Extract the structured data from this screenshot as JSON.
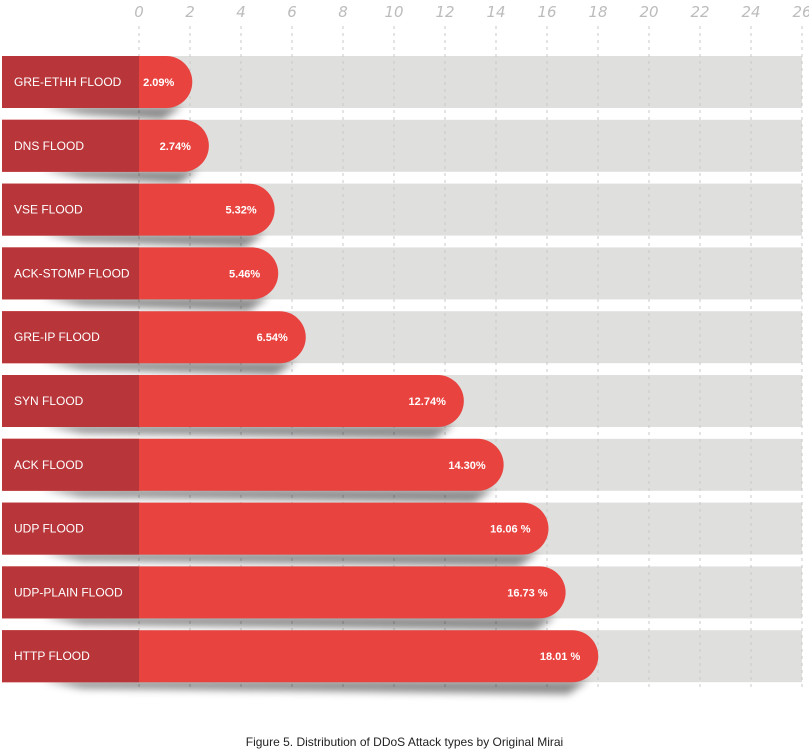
{
  "chart_data": {
    "type": "bar",
    "orientation": "horizontal",
    "categories": [
      "GRE-ETHH FLOOD",
      "DNS FLOOD",
      "VSE FLOOD",
      "ACK-STOMP FLOOD",
      "GRE-IP FLOOD",
      "SYN FLOOD",
      "ACK FLOOD",
      "UDP FLOOD",
      "UDP-PLAIN FLOOD",
      "HTTP FLOOD"
    ],
    "values": [
      2.09,
      2.74,
      5.32,
      5.46,
      6.54,
      12.74,
      14.3,
      16.06,
      16.73,
      18.01
    ],
    "value_labels": [
      "2.09%",
      "2.74%",
      "5.32%",
      "5.46%",
      "6.54%",
      "12.74%",
      "14.30%",
      "16.06 %",
      "16.73 %",
      "18.01 %"
    ],
    "x_ticks": [
      "0",
      "2",
      "4",
      "6",
      "8",
      "10",
      "12",
      "14",
      "16",
      "18",
      "20",
      "22",
      "24",
      "26"
    ],
    "xlim": [
      0,
      26
    ],
    "grid": true,
    "colors": {
      "bar": "#e8433f",
      "label_tab": "#b8363a",
      "track": "#dfe0de",
      "grid": "#c8c8c8",
      "ticks": "#bcbcbc"
    }
  },
  "caption": "Figure 5. Distribution of DDoS Attack types by Original Mirai"
}
